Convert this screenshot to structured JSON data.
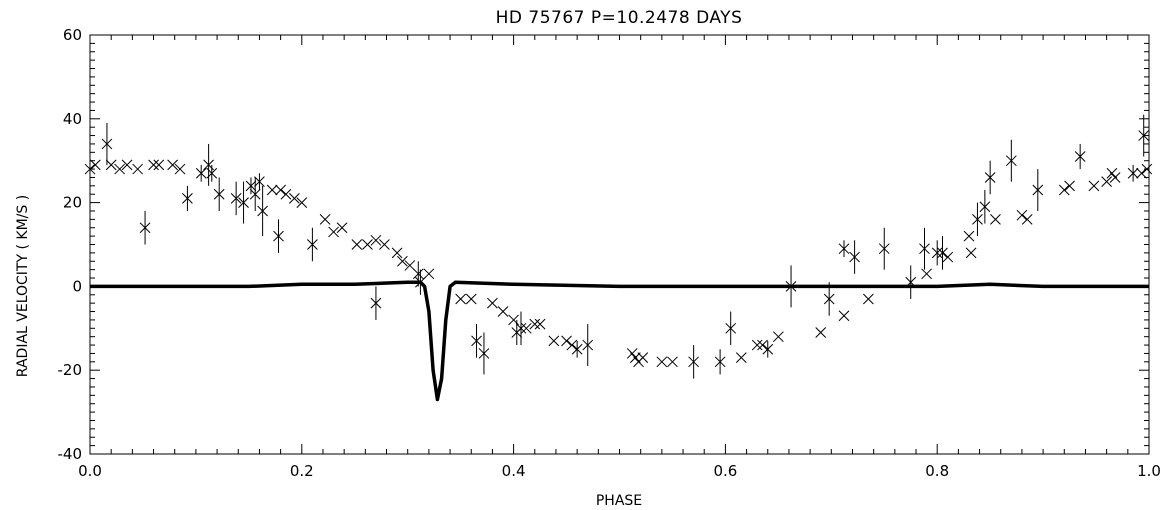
{
  "chart_data": {
    "type": "scatter",
    "title": "HD 75767   P=10.2478 DAYS",
    "xlabel": "PHASE",
    "ylabel": "RADIAL VELOCITY  ( KM/S )",
    "xlim": [
      0.0,
      1.0
    ],
    "ylim": [
      -40,
      60
    ],
    "xticks": [
      "0.0",
      "0.2",
      "0.4",
      "0.6",
      "0.8",
      "1.0"
    ],
    "yticks": [
      "-40",
      "-20",
      "0",
      "20",
      "40",
      "60"
    ],
    "grid": false,
    "series": [
      {
        "marker": "x-with-errorbar",
        "points": [
          {
            "x": 0.0,
            "y": 28,
            "err": 2
          },
          {
            "x": 0.005,
            "y": 29,
            "err": 1
          },
          {
            "x": 0.016,
            "y": 34,
            "err": 5
          },
          {
            "x": 0.02,
            "y": 29,
            "err": 1
          },
          {
            "x": 0.028,
            "y": 28,
            "err": 1
          },
          {
            "x": 0.035,
            "y": 29,
            "err": 1
          },
          {
            "x": 0.045,
            "y": 28,
            "err": 1
          },
          {
            "x": 0.052,
            "y": 14,
            "err": 4
          },
          {
            "x": 0.06,
            "y": 29,
            "err": 1
          },
          {
            "x": 0.065,
            "y": 29,
            "err": 1
          },
          {
            "x": 0.078,
            "y": 29,
            "err": 1
          },
          {
            "x": 0.085,
            "y": 28,
            "err": 1
          },
          {
            "x": 0.092,
            "y": 21,
            "err": 3
          },
          {
            "x": 0.105,
            "y": 27,
            "err": 2
          },
          {
            "x": 0.112,
            "y": 29,
            "err": 5
          },
          {
            "x": 0.115,
            "y": 27,
            "err": 2
          },
          {
            "x": 0.122,
            "y": 22,
            "err": 4
          },
          {
            "x": 0.138,
            "y": 21,
            "err": 4
          },
          {
            "x": 0.145,
            "y": 20,
            "err": 5
          },
          {
            "x": 0.152,
            "y": 24,
            "err": 2
          },
          {
            "x": 0.156,
            "y": 22,
            "err": 4
          },
          {
            "x": 0.16,
            "y": 25,
            "err": 2
          },
          {
            "x": 0.163,
            "y": 18,
            "err": 6
          },
          {
            "x": 0.172,
            "y": 23,
            "err": 1
          },
          {
            "x": 0.178,
            "y": 12,
            "err": 4
          },
          {
            "x": 0.18,
            "y": 23,
            "err": 1
          },
          {
            "x": 0.185,
            "y": 22,
            "err": 1
          },
          {
            "x": 0.193,
            "y": 21,
            "err": 1
          },
          {
            "x": 0.2,
            "y": 20,
            "err": 1
          },
          {
            "x": 0.21,
            "y": 10,
            "err": 4
          },
          {
            "x": 0.222,
            "y": 16,
            "err": 1
          },
          {
            "x": 0.23,
            "y": 13,
            "err": 1
          },
          {
            "x": 0.238,
            "y": 14,
            "err": 1
          },
          {
            "x": 0.252,
            "y": 10,
            "err": 1
          },
          {
            "x": 0.262,
            "y": 10,
            "err": 1
          },
          {
            "x": 0.27,
            "y": -4,
            "err": 4
          },
          {
            "x": 0.27,
            "y": 11,
            "err": 1
          },
          {
            "x": 0.278,
            "y": 10,
            "err": 1
          },
          {
            "x": 0.29,
            "y": 8,
            "err": 1
          },
          {
            "x": 0.295,
            "y": 6,
            "err": 1
          },
          {
            "x": 0.302,
            "y": 5,
            "err": 1
          },
          {
            "x": 0.31,
            "y": 3,
            "err": 3
          },
          {
            "x": 0.312,
            "y": 1,
            "err": 3
          },
          {
            "x": 0.32,
            "y": 3,
            "err": 1
          },
          {
            "x": 0.35,
            "y": -3,
            "err": 1
          },
          {
            "x": 0.36,
            "y": -3,
            "err": 1
          },
          {
            "x": 0.365,
            "y": -13,
            "err": 4
          },
          {
            "x": 0.372,
            "y": -16,
            "err": 5
          },
          {
            "x": 0.38,
            "y": -4,
            "err": 1
          },
          {
            "x": 0.39,
            "y": -6,
            "err": 1
          },
          {
            "x": 0.4,
            "y": -8,
            "err": 1
          },
          {
            "x": 0.403,
            "y": -11,
            "err": 3
          },
          {
            "x": 0.407,
            "y": -10,
            "err": 4
          },
          {
            "x": 0.412,
            "y": -10,
            "err": 1
          },
          {
            "x": 0.42,
            "y": -9,
            "err": 1
          },
          {
            "x": 0.425,
            "y": -9,
            "err": 1
          },
          {
            "x": 0.438,
            "y": -13,
            "err": 1
          },
          {
            "x": 0.45,
            "y": -13,
            "err": 1
          },
          {
            "x": 0.455,
            "y": -14,
            "err": 1
          },
          {
            "x": 0.46,
            "y": -15,
            "err": 2
          },
          {
            "x": 0.47,
            "y": -14,
            "err": 5
          },
          {
            "x": 0.512,
            "y": -16,
            "err": 1
          },
          {
            "x": 0.515,
            "y": -17,
            "err": 1
          },
          {
            "x": 0.518,
            "y": -18,
            "err": 1
          },
          {
            "x": 0.522,
            "y": -17,
            "err": 1
          },
          {
            "x": 0.54,
            "y": -18,
            "err": 1
          },
          {
            "x": 0.55,
            "y": -18,
            "err": 1
          },
          {
            "x": 0.57,
            "y": -18,
            "err": 4
          },
          {
            "x": 0.595,
            "y": -18,
            "err": 3
          },
          {
            "x": 0.605,
            "y": -10,
            "err": 4
          },
          {
            "x": 0.615,
            "y": -17,
            "err": 1
          },
          {
            "x": 0.63,
            "y": -14,
            "err": 1
          },
          {
            "x": 0.635,
            "y": -14,
            "err": 1
          },
          {
            "x": 0.64,
            "y": -15,
            "err": 2
          },
          {
            "x": 0.65,
            "y": -12,
            "err": 1
          },
          {
            "x": 0.662,
            "y": 0,
            "err": 5
          },
          {
            "x": 0.69,
            "y": -11,
            "err": 1
          },
          {
            "x": 0.698,
            "y": -3,
            "err": 4
          },
          {
            "x": 0.712,
            "y": -7,
            "err": 1
          },
          {
            "x": 0.712,
            "y": 9,
            "err": 2
          },
          {
            "x": 0.722,
            "y": 7,
            "err": 4
          },
          {
            "x": 0.735,
            "y": -3,
            "err": 1
          },
          {
            "x": 0.75,
            "y": 9,
            "err": 5
          },
          {
            "x": 0.775,
            "y": 1,
            "err": 4
          },
          {
            "x": 0.788,
            "y": 9,
            "err": 5
          },
          {
            "x": 0.79,
            "y": 3,
            "err": 1
          },
          {
            "x": 0.8,
            "y": 8,
            "err": 3
          },
          {
            "x": 0.805,
            "y": 8,
            "err": 4
          },
          {
            "x": 0.81,
            "y": 7,
            "err": 1
          },
          {
            "x": 0.83,
            "y": 12,
            "err": 1
          },
          {
            "x": 0.832,
            "y": 8,
            "err": 1
          },
          {
            "x": 0.838,
            "y": 16,
            "err": 4
          },
          {
            "x": 0.845,
            "y": 19,
            "err": 4
          },
          {
            "x": 0.85,
            "y": 26,
            "err": 4
          },
          {
            "x": 0.855,
            "y": 16,
            "err": 1
          },
          {
            "x": 0.87,
            "y": 30,
            "err": 5
          },
          {
            "x": 0.88,
            "y": 17,
            "err": 1
          },
          {
            "x": 0.885,
            "y": 16,
            "err": 1
          },
          {
            "x": 0.895,
            "y": 23,
            "err": 5
          },
          {
            "x": 0.92,
            "y": 23,
            "err": 1
          },
          {
            "x": 0.925,
            "y": 24,
            "err": 1
          },
          {
            "x": 0.935,
            "y": 31,
            "err": 3
          },
          {
            "x": 0.948,
            "y": 24,
            "err": 1
          },
          {
            "x": 0.96,
            "y": 25,
            "err": 1
          },
          {
            "x": 0.965,
            "y": 27,
            "err": 1
          },
          {
            "x": 0.968,
            "y": 26,
            "err": 1
          },
          {
            "x": 0.985,
            "y": 27,
            "err": 2
          },
          {
            "x": 0.993,
            "y": 27,
            "err": 1
          },
          {
            "x": 0.995,
            "y": 36,
            "err": 5
          },
          {
            "x": 0.998,
            "y": 28,
            "err": 1
          }
        ]
      },
      {
        "marker": "thick-line",
        "points": [
          {
            "x": 0.0,
            "y": 0
          },
          {
            "x": 0.05,
            "y": 0
          },
          {
            "x": 0.1,
            "y": 0
          },
          {
            "x": 0.15,
            "y": 0
          },
          {
            "x": 0.2,
            "y": 0.5
          },
          {
            "x": 0.25,
            "y": 0.5
          },
          {
            "x": 0.3,
            "y": 1
          },
          {
            "x": 0.312,
            "y": 1
          },
          {
            "x": 0.316,
            "y": 0
          },
          {
            "x": 0.32,
            "y": -6
          },
          {
            "x": 0.324,
            "y": -20
          },
          {
            "x": 0.328,
            "y": -27
          },
          {
            "x": 0.332,
            "y": -22
          },
          {
            "x": 0.336,
            "y": -8
          },
          {
            "x": 0.34,
            "y": 0
          },
          {
            "x": 0.345,
            "y": 1
          },
          {
            "x": 0.4,
            "y": 0.5
          },
          {
            "x": 0.5,
            "y": 0
          },
          {
            "x": 0.6,
            "y": 0
          },
          {
            "x": 0.7,
            "y": 0
          },
          {
            "x": 0.75,
            "y": 0
          },
          {
            "x": 0.8,
            "y": 0
          },
          {
            "x": 0.85,
            "y": 0.5
          },
          {
            "x": 0.9,
            "y": 0
          },
          {
            "x": 0.95,
            "y": 0
          },
          {
            "x": 1.0,
            "y": 0
          }
        ]
      }
    ]
  }
}
